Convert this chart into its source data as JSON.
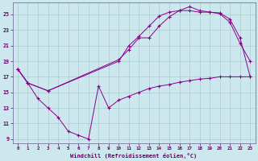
{
  "xlabel": "Windchill (Refroidissement éolien,°C)",
  "background_color": "#cce8ee",
  "line_color": "#880088",
  "grid_color": "#aacccc",
  "xlim": [
    -0.5,
    23.5
  ],
  "ylim": [
    8.5,
    26.5
  ],
  "xticks": [
    0,
    1,
    2,
    3,
    4,
    5,
    6,
    7,
    8,
    9,
    10,
    11,
    12,
    13,
    14,
    15,
    16,
    17,
    18,
    19,
    20,
    21,
    22,
    23
  ],
  "yticks": [
    9,
    11,
    13,
    15,
    17,
    19,
    21,
    23,
    25
  ],
  "line1_x": [
    0,
    1,
    2,
    3,
    4,
    5,
    6,
    7,
    8,
    9,
    10,
    11,
    12,
    13,
    14,
    15,
    16,
    17,
    18,
    19,
    20,
    21,
    22,
    23
  ],
  "line1_y": [
    18.0,
    16.2,
    14.2,
    13.0,
    11.8,
    10.0,
    9.5,
    9.0,
    15.8,
    13.0,
    14.0,
    14.5,
    15.0,
    15.5,
    15.8,
    16.0,
    16.3,
    16.5,
    16.7,
    16.8,
    17.0,
    17.0,
    17.0,
    17.0
  ],
  "line2_x": [
    0,
    1,
    3,
    10,
    11,
    12,
    13,
    14,
    15,
    16,
    17,
    18,
    19,
    20,
    21,
    22,
    23
  ],
  "line2_y": [
    18.0,
    16.2,
    15.2,
    19.0,
    21.0,
    22.2,
    23.5,
    24.8,
    25.3,
    25.5,
    25.5,
    25.3,
    25.3,
    25.1,
    24.0,
    21.3,
    19.0
  ],
  "line3_x": [
    0,
    1,
    3,
    10,
    11,
    12,
    13,
    14,
    15,
    16,
    17,
    18,
    19,
    20,
    21,
    22,
    23
  ],
  "line3_y": [
    18.0,
    16.2,
    15.2,
    19.2,
    20.5,
    22.0,
    22.0,
    23.5,
    24.7,
    25.5,
    26.0,
    25.5,
    25.3,
    25.2,
    24.4,
    22.0,
    17.0
  ]
}
